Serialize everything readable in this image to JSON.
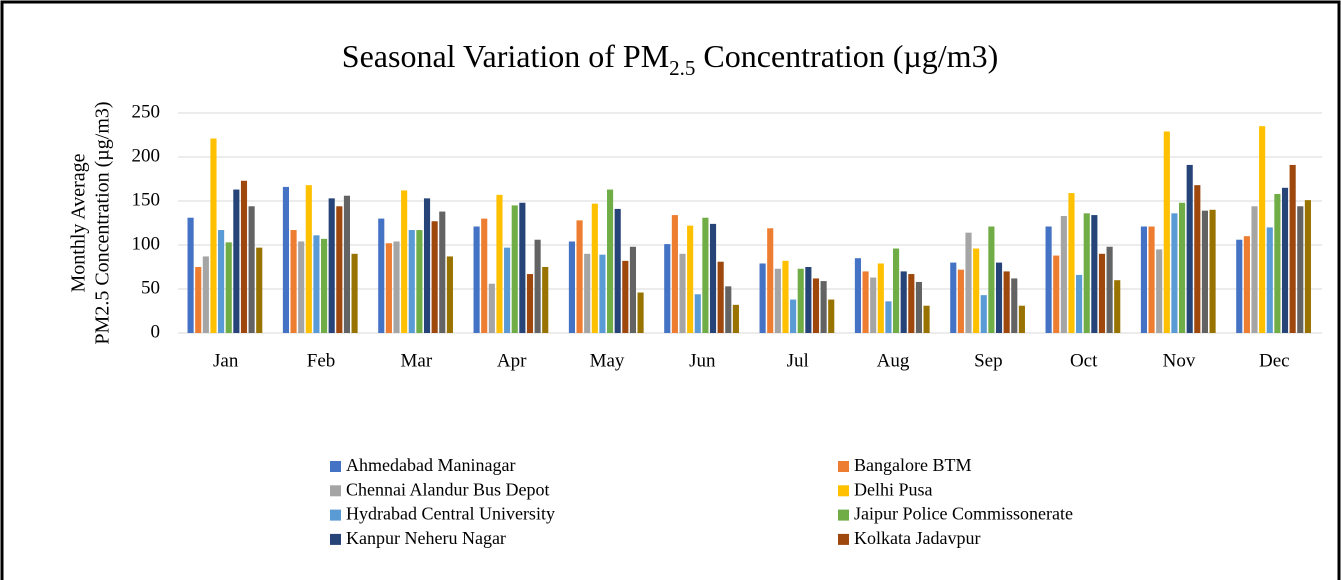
{
  "chart_data": {
    "type": "bar",
    "title": [
      "Seasonal Variation of PM",
      "2.5",
      "Concentration (µg/m3)"
    ],
    "y_label": [
      "Monthly Average",
      "PM2.5 Concentration (µg/m3)"
    ],
    "categories": [
      "Jan",
      "Feb",
      "Mar",
      "Apr",
      "May",
      "Jun",
      "Jul",
      "Aug",
      "Sep",
      "Oct",
      "Nov",
      "Dec"
    ],
    "series": [
      {
        "name": "Ahmedabad Maninagar",
        "color": "#4472c4",
        "values": [
          131,
          166,
          130,
          121,
          104,
          101,
          79,
          85,
          80,
          121,
          121,
          106
        ]
      },
      {
        "name": "Bangalore BTM",
        "color": "#ed7d31",
        "values": [
          75,
          117,
          102,
          130,
          128,
          134,
          119,
          70,
          72,
          88,
          121,
          110
        ]
      },
      {
        "name": "Chennai Alandur Bus Depot",
        "color": "#a5a5a5",
        "values": [
          87,
          104,
          104,
          56,
          90,
          90,
          73,
          63,
          114,
          133,
          95,
          144
        ]
      },
      {
        "name": "Delhi Pusa",
        "color": "#ffc000",
        "values": [
          221,
          168,
          162,
          157,
          147,
          122,
          82,
          79,
          96,
          159,
          229,
          235
        ]
      },
      {
        "name": "Hydrabad Central University",
        "color": "#5b9bd5",
        "values": [
          117,
          111,
          117,
          97,
          89,
          44,
          38,
          36,
          43,
          66,
          136,
          120
        ]
      },
      {
        "name": "Jaipur Police Commissonerate",
        "color": "#70ad47",
        "values": [
          103,
          107,
          117,
          145,
          163,
          131,
          73,
          96,
          121,
          136,
          148,
          158
        ]
      },
      {
        "name": "Kanpur Neheru Nagar",
        "color": "#264478",
        "values": [
          163,
          153,
          153,
          148,
          141,
          124,
          75,
          70,
          80,
          134,
          191,
          165
        ]
      },
      {
        "name": "Kolkata Jadavpur",
        "color": "#9e480e",
        "values": [
          173,
          144,
          127,
          67,
          82,
          81,
          62,
          67,
          70,
          90,
          168,
          191
        ]
      },
      {
        "name": null,
        "color": "#636363",
        "values": [
          144,
          156,
          138,
          106,
          98,
          53,
          59,
          58,
          62,
          98,
          139,
          144
        ]
      },
      {
        "name": null,
        "color": "#997300",
        "values": [
          97,
          90,
          87,
          75,
          46,
          32,
          38,
          31,
          31,
          60,
          140,
          151
        ]
      }
    ],
    "ylim": [
      0,
      250
    ],
    "yticks": [
      0,
      50,
      100,
      150,
      200,
      250
    ],
    "grid": true
  }
}
